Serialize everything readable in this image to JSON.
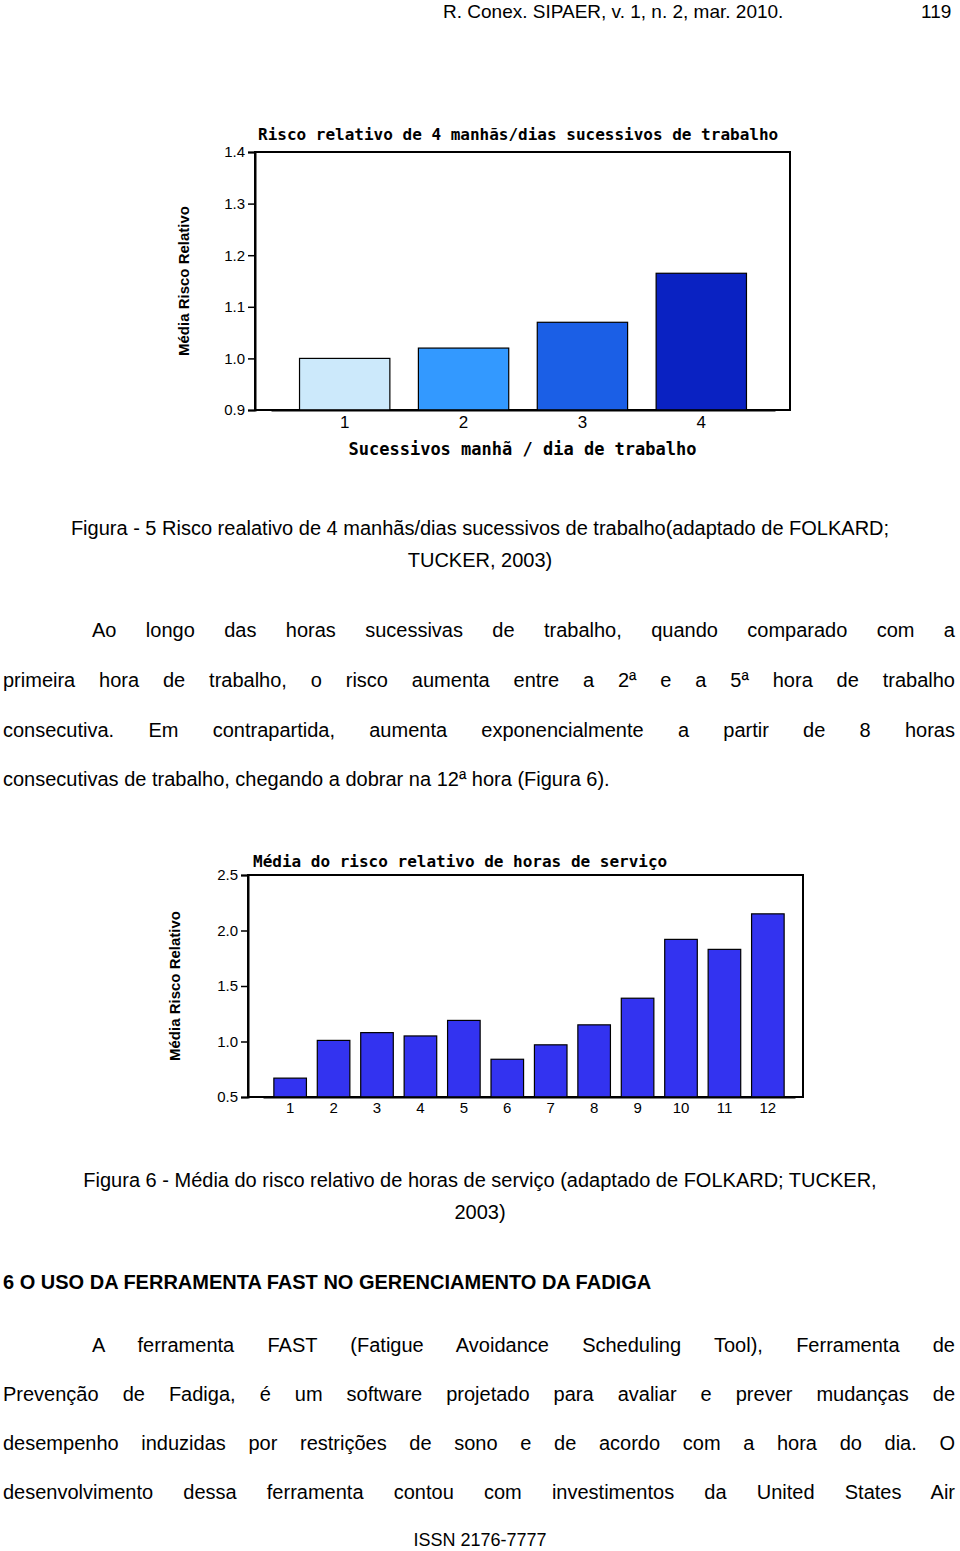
{
  "header": {
    "journal": "R. Conex. SIPAER, v. 1, n. 2, mar. 2010.",
    "page": "119"
  },
  "chart_data": [
    {
      "type": "bar",
      "title": "Risco relativo de 4 manhãs/dias sucessivos de trabalho",
      "x_label": "Sucessivos manhã / dia de trabalho",
      "y_label": "Média Risco Relativo",
      "categories": [
        "1",
        "2",
        "3",
        "4"
      ],
      "values": [
        1.0,
        1.02,
        1.07,
        1.165
      ],
      "colors": [
        "#cce9fb",
        "#3399ff",
        "#1b5fe6",
        "#0a22c2"
      ],
      "ylim": [
        0.9,
        1.4
      ],
      "yticks": [
        0.9,
        {
          "value": 1,
          "label": "1.0"
        },
        1.1,
        1.2,
        1.3,
        1.4
      ],
      "grid": false
    },
    {
      "type": "bar",
      "title": "Média do risco relativo de horas de serviço",
      "y_label": "Média Risco Relativo",
      "categories": [
        "1",
        "2",
        "3",
        "4",
        "5",
        "6",
        "7",
        "8",
        "9",
        "10",
        "11",
        "12"
      ],
      "values": [
        0.67,
        1.01,
        1.08,
        1.05,
        1.19,
        0.84,
        0.97,
        1.15,
        1.39,
        1.92,
        1.83,
        2.15
      ],
      "color": "#3333f0",
      "ylim": [
        0.5,
        2.5
      ],
      "yticks": [
        0.5,
        {
          "value": 1,
          "label": "1.0"
        },
        1.5,
        {
          "value": 2,
          "label": "2.0"
        },
        2.5
      ],
      "grid": false
    }
  ],
  "figure_captions": [
    [
      "Figura - 5 Risco realativo de 4 manhãs/dias sucessivos de trabalho(adaptado de FOLKARD;",
      "TUCKER, 2003)"
    ],
    [
      "Figura 6 - Média do risco relativo de horas de serviço (adaptado de FOLKARD; TUCKER,",
      "2003)"
    ]
  ],
  "paragraphs": [
    {
      "lines": [
        "Ao longo das horas sucessivas de trabalho, quando comparado com a",
        "primeira hora de trabalho, o risco aumenta entre a 2ª e a 5ª hora de trabalho",
        "consecutiva. Em contrapartida, aumenta exponencialmente a partir de 8 horas",
        "consecutivas de trabalho, chegando a dobrar na 12ª hora (Figura 6)."
      ]
    },
    {
      "lines": [
        "A ferramenta FAST (Fatigue Avoidance Scheduling Tool), Ferramenta de",
        "Prevenção de Fadiga, é um software projetado para avaliar e prever mudanças de",
        "desempenho induzidas por restrições de sono e de acordo com a hora do dia. O",
        "desenvolvimento dessa ferramenta contou com investimentos da United States Air"
      ]
    }
  ],
  "section_heading": "6 O USO DA FERRAMENTA FAST NO GERENCIAMENTO DA FADIGA",
  "footer": "ISSN 2176-7777"
}
